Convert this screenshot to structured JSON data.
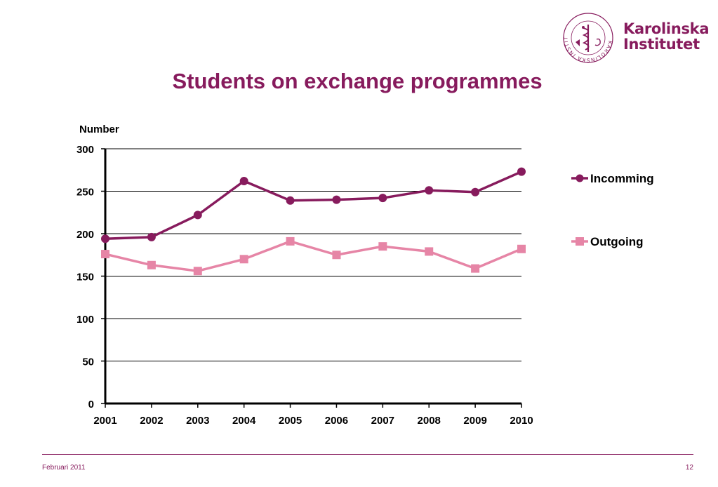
{
  "slide": {
    "title": "Students on exchange programmes",
    "footer_date": "Februari 2011",
    "page_number": "12"
  },
  "logo": {
    "line1": "Karolinska",
    "line2": "Institutet",
    "seal_text": "KAROLINSKA INSTITUTET · ANNO 1810",
    "color": "#871b5d"
  },
  "chart_data": {
    "type": "line",
    "ylabel": "Number",
    "ylim": [
      0,
      300
    ],
    "yticks": [
      0,
      50,
      100,
      150,
      200,
      250,
      300
    ],
    "x": [
      "2001",
      "2002",
      "2003",
      "2004",
      "2005",
      "2006",
      "2007",
      "2008",
      "2009",
      "2010"
    ],
    "grid": true,
    "legend_position": "right",
    "series": [
      {
        "name": "Incomming",
        "color": "#871b5d",
        "marker": "circle",
        "values": [
          194,
          196,
          222,
          262,
          239,
          240,
          242,
          251,
          249,
          273
        ]
      },
      {
        "name": "Outgoing",
        "color": "#e685a6",
        "marker": "square",
        "values": [
          176,
          163,
          156,
          170,
          191,
          175,
          185,
          179,
          159,
          182
        ]
      }
    ]
  }
}
